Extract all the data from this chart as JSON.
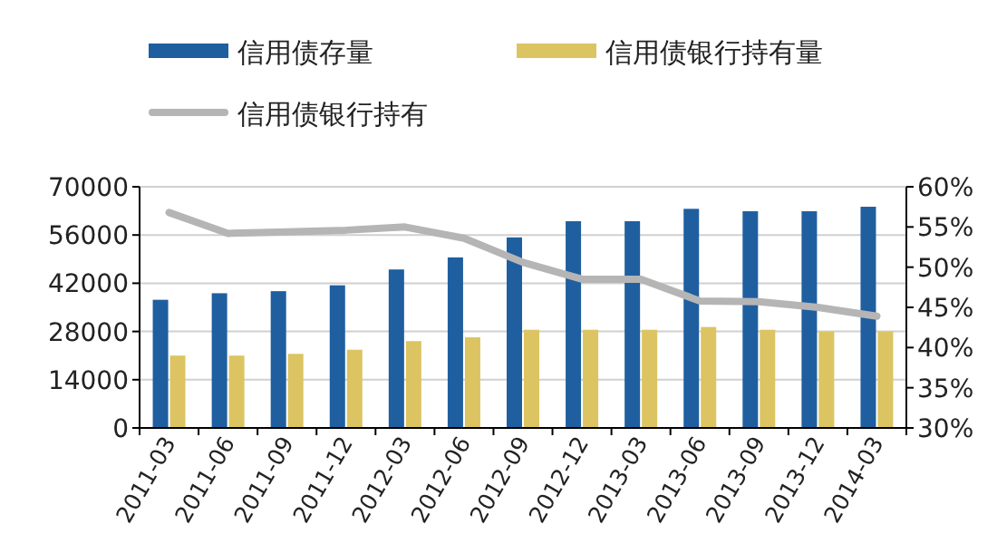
{
  "chart_data": {
    "type": "bar",
    "categories": [
      "2011-03",
      "2011-06",
      "2011-09",
      "2011-12",
      "2012-03",
      "2012-06",
      "2012-09",
      "2012-12",
      "2013-03",
      "2013-06",
      "2013-09",
      "2013-12",
      "2014-03"
    ],
    "series": [
      {
        "name": "信用债存量",
        "color": "#1f5f9f",
        "values": [
          37200,
          39100,
          39700,
          41400,
          46000,
          49500,
          55300,
          60000,
          60000,
          63600,
          62900,
          62900,
          64200
        ]
      },
      {
        "name": "信用债银行持有量",
        "color": "#dcc462",
        "values": [
          21000,
          21000,
          21500,
          22700,
          25200,
          26300,
          28500,
          28500,
          28500,
          29300,
          28500,
          28000,
          28000
        ]
      },
      {
        "name": "信用债银行持有",
        "type": "line",
        "axis": "y2",
        "color": "#b5b5b5",
        "values": [
          56.8,
          54.2,
          54.4,
          54.6,
          55.0,
          53.6,
          50.6,
          48.5,
          48.5,
          45.8,
          45.7,
          45.0,
          43.9
        ]
      }
    ],
    "ylim": [
      0,
      70000
    ],
    "yticks": [
      0,
      14000,
      28000,
      42000,
      56000,
      70000
    ],
    "y2lim": [
      30,
      60
    ],
    "y2ticks": [
      {
        "value": 30,
        "label": "30%"
      },
      {
        "value": 35,
        "label": "35%"
      },
      {
        "value": 40,
        "label": "40%"
      },
      {
        "value": 45,
        "label": "45%"
      },
      {
        "value": 50,
        "label": "50%"
      },
      {
        "value": 55,
        "label": "55%"
      },
      {
        "value": 60,
        "label": "60%"
      }
    ],
    "grid": "y",
    "legend": "top"
  }
}
